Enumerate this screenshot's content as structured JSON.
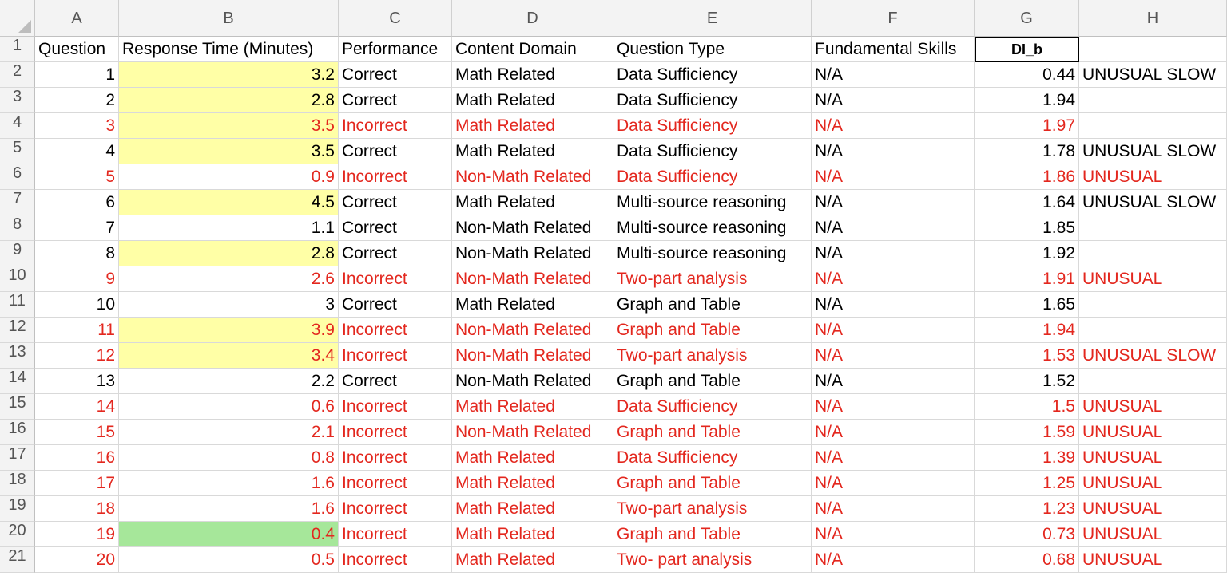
{
  "sheet": {
    "columns": [
      "A",
      "B",
      "C",
      "D",
      "E",
      "F",
      "G",
      "H"
    ],
    "header_row": [
      "Question",
      "Response Time (Minutes)",
      "Performance",
      "Content Domain",
      "Question Type",
      "Fundamental Skills",
      "DI_b",
      ""
    ],
    "colors": {
      "red_text": "#e3271e",
      "yellow_fill": "#ffffa6",
      "green_fill": "#a6e79a"
    },
    "rows": [
      {
        "q": "1",
        "time": "3.2",
        "perf": "Correct",
        "domain": "Math Related",
        "type": "Data Sufficiency",
        "skills": "N/A",
        "dib": "0.44",
        "note": "UNUSUAL SLOW",
        "red": false,
        "fill": "yellow"
      },
      {
        "q": "2",
        "time": "2.8",
        "perf": "Correct",
        "domain": "Math Related",
        "type": "Data Sufficiency",
        "skills": "N/A",
        "dib": "1.94",
        "note": "",
        "red": false,
        "fill": "yellow"
      },
      {
        "q": "3",
        "time": "3.5",
        "perf": "Incorrect",
        "domain": "Math Related",
        "type": "Data Sufficiency",
        "skills": "N/A",
        "dib": "1.97",
        "note": "",
        "red": true,
        "fill": "yellow"
      },
      {
        "q": "4",
        "time": "3.5",
        "perf": "Correct",
        "domain": "Math Related",
        "type": "Data Sufficiency",
        "skills": "N/A",
        "dib": "1.78",
        "note": "UNUSUAL SLOW",
        "red": false,
        "fill": "yellow"
      },
      {
        "q": "5",
        "time": "0.9",
        "perf": "Incorrect",
        "domain": "Non-Math Related",
        "type": "Data Sufficiency",
        "skills": "N/A",
        "dib": "1.86",
        "note": "UNUSUAL",
        "red": true,
        "fill": ""
      },
      {
        "q": "6",
        "time": "4.5",
        "perf": "Correct",
        "domain": "Math Related",
        "type": "Multi-source reasoning",
        "skills": "N/A",
        "dib": "1.64",
        "note": "UNUSUAL SLOW",
        "red": false,
        "fill": "yellow"
      },
      {
        "q": "7",
        "time": "1.1",
        "perf": "Correct",
        "domain": "Non-Math Related",
        "type": "Multi-source reasoning",
        "skills": "N/A",
        "dib": "1.85",
        "note": "",
        "red": false,
        "fill": ""
      },
      {
        "q": "8",
        "time": "2.8",
        "perf": "Correct",
        "domain": "Non-Math Related",
        "type": "Multi-source reasoning",
        "skills": "N/A",
        "dib": "1.92",
        "note": "",
        "red": false,
        "fill": "yellow"
      },
      {
        "q": "9",
        "time": "2.6",
        "perf": "Incorrect",
        "domain": "Non-Math Related",
        "type": "Two-part analysis",
        "skills": "N/A",
        "dib": "1.91",
        "note": "UNUSUAL",
        "red": true,
        "fill": ""
      },
      {
        "q": "10",
        "time": "3",
        "perf": "Correct",
        "domain": "Math Related",
        "type": "Graph and Table",
        "skills": "N/A",
        "dib": "1.65",
        "note": "",
        "red": false,
        "fill": ""
      },
      {
        "q": "11",
        "time": "3.9",
        "perf": "Incorrect",
        "domain": "Non-Math Related",
        "type": "Graph and Table",
        "skills": "N/A",
        "dib": "1.94",
        "note": "",
        "red": true,
        "fill": "yellow"
      },
      {
        "q": "12",
        "time": "3.4",
        "perf": "Incorrect",
        "domain": "Non-Math Related",
        "type": "Two-part analysis",
        "skills": "N/A",
        "dib": "1.53",
        "note": "UNUSUAL SLOW",
        "red": true,
        "fill": "yellow"
      },
      {
        "q": "13",
        "time": "2.2",
        "perf": "Correct",
        "domain": "Non-Math Related",
        "type": "Graph and Table",
        "skills": "N/A",
        "dib": "1.52",
        "note": "",
        "red": false,
        "fill": ""
      },
      {
        "q": "14",
        "time": "0.6",
        "perf": "Incorrect",
        "domain": "Math Related",
        "type": "Data Sufficiency",
        "skills": "N/A",
        "dib": "1.5",
        "note": "UNUSUAL",
        "red": true,
        "fill": ""
      },
      {
        "q": "15",
        "time": "2.1",
        "perf": "Incorrect",
        "domain": "Non-Math Related",
        "type": "Graph and Table",
        "skills": "N/A",
        "dib": "1.59",
        "note": "UNUSUAL",
        "red": true,
        "fill": ""
      },
      {
        "q": "16",
        "time": "0.8",
        "perf": "Incorrect",
        "domain": "Math Related",
        "type": "Data Sufficiency",
        "skills": "N/A",
        "dib": "1.39",
        "note": "UNUSUAL",
        "red": true,
        "fill": ""
      },
      {
        "q": "17",
        "time": "1.6",
        "perf": "Incorrect",
        "domain": "Math Related",
        "type": "Graph and Table",
        "skills": "N/A",
        "dib": "1.25",
        "note": "UNUSUAL",
        "red": true,
        "fill": ""
      },
      {
        "q": "18",
        "time": "1.6",
        "perf": "Incorrect",
        "domain": "Math Related",
        "type": "Two-part analysis",
        "skills": "N/A",
        "dib": "1.23",
        "note": "UNUSUAL",
        "red": true,
        "fill": ""
      },
      {
        "q": "19",
        "time": "0.4",
        "perf": "Incorrect",
        "domain": "Math Related",
        "type": "Graph and Table",
        "skills": "N/A",
        "dib": "0.73",
        "note": "UNUSUAL",
        "red": true,
        "fill": "green"
      },
      {
        "q": "20",
        "time": "0.5",
        "perf": "Incorrect",
        "domain": "Math Related",
        "type": "Two- part analysis",
        "skills": "N/A",
        "dib": "0.68",
        "note": "UNUSUAL",
        "red": true,
        "fill": ""
      }
    ]
  }
}
